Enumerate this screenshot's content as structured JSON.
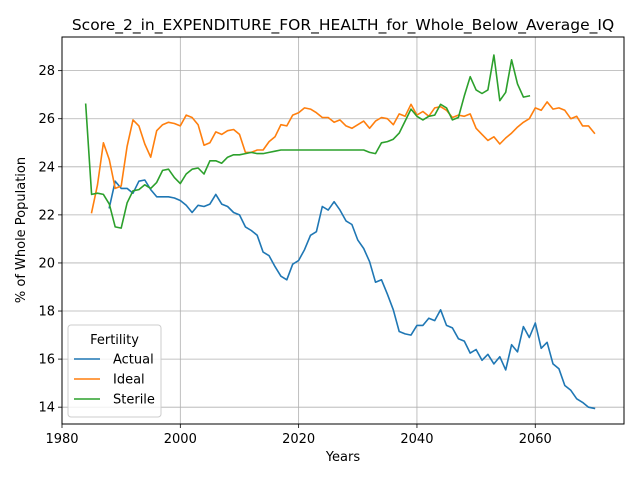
{
  "chart_data": {
    "type": "line",
    "title": "Score_2_in_EXPENDITURE_FOR_HEALTH_for_Whole_Below_Average_IQ",
    "xlabel": "Years",
    "ylabel": "% of Whole Population",
    "xlim": [
      1980,
      2075
    ],
    "ylim": [
      13.3,
      29.4
    ],
    "xticks": [
      1980,
      2000,
      2020,
      2040,
      2060
    ],
    "yticks": [
      14,
      16,
      18,
      20,
      22,
      24,
      26,
      28
    ],
    "grid": true,
    "legend": {
      "title": "Fertility",
      "placement": "lower-left"
    },
    "series": [
      {
        "name": "Actual",
        "color": "#1f77b4",
        "x": [
          1988,
          1989,
          1990,
          1991,
          1992,
          1993,
          1994,
          1995,
          1996,
          1997,
          1998,
          1999,
          2000,
          2001,
          2002,
          2003,
          2004,
          2005,
          2006,
          2007,
          2008,
          2009,
          2010,
          2011,
          2012,
          2013,
          2014,
          2015,
          2016,
          2017,
          2018,
          2019,
          2020,
          2021,
          2022,
          2023,
          2024,
          2025,
          2026,
          2027,
          2028,
          2029,
          2030,
          2031,
          2032,
          2033,
          2034,
          2035,
          2036,
          2037,
          2038,
          2039,
          2040,
          2041,
          2042,
          2043,
          2044,
          2045,
          2046,
          2047,
          2048,
          2049,
          2050,
          2051,
          2052,
          2053,
          2054,
          2055,
          2056,
          2057,
          2058,
          2059,
          2060,
          2061,
          2062,
          2063,
          2064,
          2065,
          2066,
          2067,
          2068,
          2069,
          2070
        ],
        "y": [
          22.3,
          23.4,
          23.1,
          23.1,
          22.9,
          23.4,
          23.45,
          23.05,
          22.75,
          22.75,
          22.75,
          22.7,
          22.6,
          22.4,
          22.1,
          22.4,
          22.35,
          22.45,
          22.85,
          22.45,
          22.35,
          22.1,
          22.0,
          21.5,
          21.35,
          21.15,
          20.45,
          20.3,
          19.85,
          19.45,
          19.3,
          19.95,
          20.1,
          20.55,
          21.15,
          21.3,
          22.35,
          22.2,
          22.55,
          22.2,
          21.75,
          21.6,
          20.95,
          20.6,
          20.05,
          19.2,
          19.3,
          18.7,
          18.05,
          17.15,
          17.05,
          17.0,
          17.4,
          17.4,
          17.7,
          17.6,
          18.05,
          17.4,
          17.3,
          16.85,
          16.75,
          16.25,
          16.4,
          15.95,
          16.2,
          15.8,
          16.1,
          15.55,
          16.6,
          16.3,
          17.35,
          16.9,
          17.5,
          16.45,
          16.7,
          15.8,
          15.6,
          14.9,
          14.7,
          14.35,
          14.2,
          14.0,
          13.95
        ]
      },
      {
        "name": "Ideal",
        "color": "#ff7f0e",
        "x": [
          1985,
          1986,
          1987,
          1988,
          1989,
          1990,
          1991,
          1992,
          1993,
          1994,
          1995,
          1996,
          1997,
          1998,
          1999,
          2000,
          2001,
          2002,
          2003,
          2004,
          2005,
          2006,
          2007,
          2008,
          2009,
          2010,
          2011,
          2012,
          2013,
          2014,
          2015,
          2016,
          2017,
          2018,
          2019,
          2020,
          2021,
          2022,
          2023,
          2024,
          2025,
          2026,
          2027,
          2028,
          2029,
          2030,
          2031,
          2032,
          2033,
          2034,
          2035,
          2036,
          2037,
          2038,
          2039,
          2040,
          2041,
          2042,
          2043,
          2044,
          2045,
          2046,
          2047,
          2048,
          2049,
          2050,
          2051,
          2052,
          2053,
          2054,
          2055,
          2056,
          2057,
          2058,
          2059,
          2060,
          2061,
          2062,
          2063,
          2064,
          2065,
          2066,
          2067,
          2068,
          2069,
          2070
        ],
        "y": [
          22.1,
          23.25,
          25.0,
          24.3,
          23.1,
          23.2,
          24.85,
          25.95,
          25.7,
          24.95,
          24.4,
          25.5,
          25.75,
          25.85,
          25.8,
          25.7,
          26.15,
          26.05,
          25.75,
          24.9,
          25.0,
          25.45,
          25.35,
          25.5,
          25.55,
          25.35,
          24.6,
          24.6,
          24.7,
          24.7,
          25.05,
          25.25,
          25.75,
          25.7,
          26.15,
          26.25,
          26.45,
          26.4,
          26.25,
          26.05,
          26.05,
          25.85,
          25.95,
          25.7,
          25.6,
          25.75,
          25.9,
          25.6,
          25.9,
          26.05,
          26.0,
          25.75,
          26.2,
          26.1,
          26.6,
          26.15,
          26.3,
          26.1,
          26.45,
          26.5,
          26.35,
          26.05,
          26.15,
          26.1,
          26.2,
          25.6,
          25.35,
          25.1,
          25.25,
          24.95,
          25.2,
          25.4,
          25.65,
          25.85,
          26.0,
          26.45,
          26.35,
          26.7,
          26.4,
          26.45,
          26.35,
          26.0,
          26.1,
          25.7,
          25.7,
          25.4
        ]
      },
      {
        "name": "Sterile",
        "color": "#2ca02c",
        "x": [
          1984,
          1985,
          1986,
          1987,
          1988,
          1989,
          1990,
          1991,
          1992,
          1993,
          1994,
          1995,
          1996,
          1997,
          1998,
          1999,
          2000,
          2001,
          2002,
          2003,
          2004,
          2005,
          2006,
          2007,
          2008,
          2009,
          2010,
          2011,
          2012,
          2013,
          2014,
          2015,
          2016,
          2017,
          2018,
          2019,
          2020,
          2021,
          2022,
          2023,
          2024,
          2025,
          2026,
          2027,
          2028,
          2029,
          2030,
          2031,
          2032,
          2033,
          2034,
          2035,
          2036,
          2037,
          2038,
          2039,
          2040,
          2041,
          2042,
          2043,
          2044,
          2045,
          2046,
          2047,
          2048,
          2049,
          2050,
          2051,
          2052,
          2053,
          2054,
          2055,
          2056,
          2057,
          2058,
          2059
        ],
        "y": [
          26.6,
          22.85,
          22.9,
          22.85,
          22.45,
          21.5,
          21.45,
          22.5,
          23.0,
          23.05,
          23.25,
          23.1,
          23.35,
          23.85,
          23.9,
          23.55,
          23.3,
          23.7,
          23.9,
          23.95,
          23.7,
          24.25,
          24.25,
          24.15,
          24.4,
          24.5,
          24.5,
          24.55,
          24.6,
          24.55,
          24.55,
          24.6,
          24.65,
          24.7,
          24.7,
          24.7,
          24.7,
          24.7,
          24.7,
          24.7,
          24.7,
          24.7,
          24.7,
          24.7,
          24.7,
          24.7,
          24.7,
          24.7,
          24.6,
          24.55,
          25.0,
          25.05,
          25.15,
          25.4,
          25.9,
          26.4,
          26.1,
          25.95,
          26.1,
          26.15,
          26.6,
          26.45,
          25.95,
          26.05,
          26.95,
          27.75,
          27.2,
          27.05,
          27.2,
          28.65,
          26.75,
          27.1,
          28.45,
          27.45,
          26.9,
          26.95
        ]
      }
    ]
  }
}
